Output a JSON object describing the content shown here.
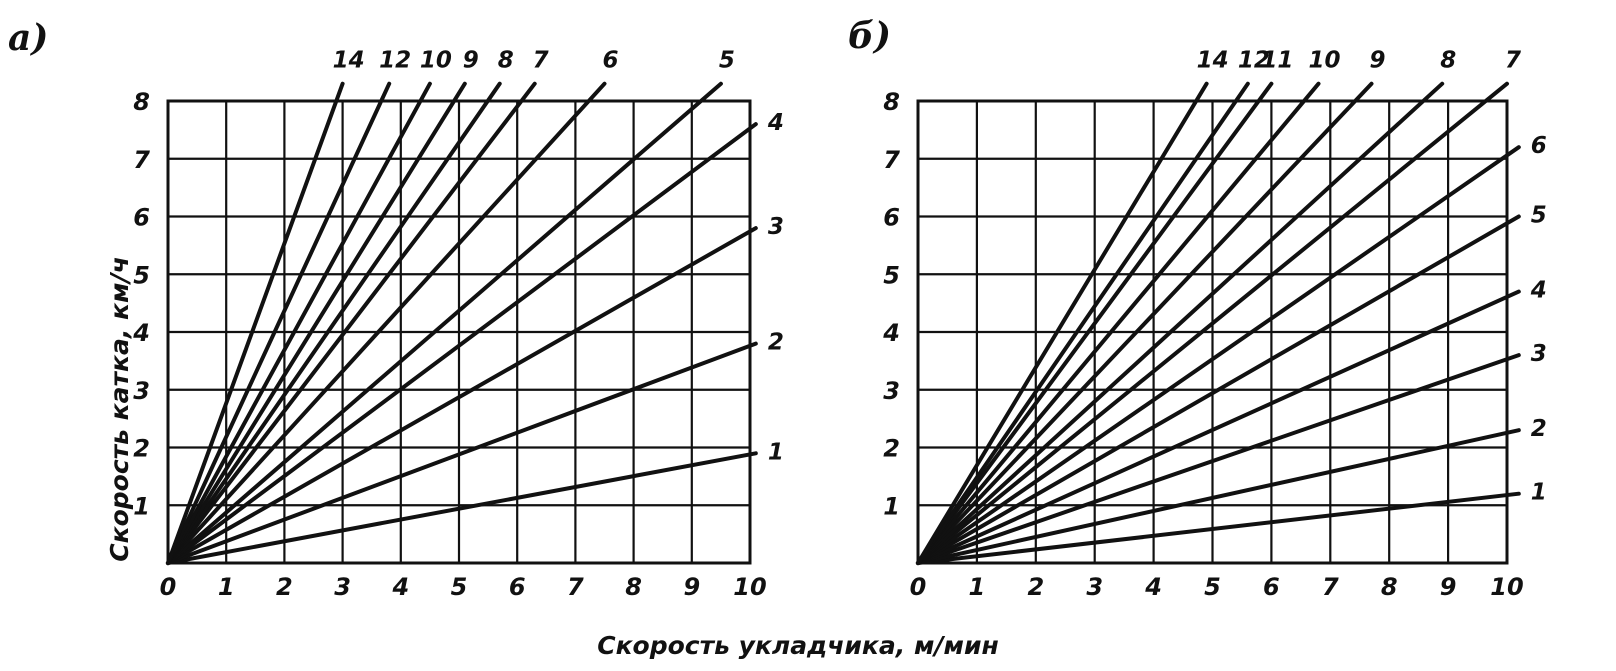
{
  "ylabel": "Скорость катка, км/ч",
  "xlabel": "Скорость укладчика, м/мин",
  "chart_data": [
    {
      "type": "line",
      "panel": "a)",
      "xlim": [
        0,
        10
      ],
      "ylim": [
        0,
        8
      ],
      "x_ticks": [
        "0",
        "1",
        "2",
        "3",
        "4",
        "5",
        "6",
        "7",
        "8",
        "9",
        "10"
      ],
      "y_ticks": [
        "1",
        "2",
        "3",
        "4",
        "5",
        "6",
        "7",
        "8"
      ],
      "grid": true,
      "series": [
        {
          "name": "1",
          "x": [
            0,
            10.1
          ],
          "y": [
            0,
            1.9
          ]
        },
        {
          "name": "2",
          "x": [
            0,
            10.1
          ],
          "y": [
            0,
            3.8
          ]
        },
        {
          "name": "3",
          "x": [
            0,
            10.1
          ],
          "y": [
            0,
            5.8
          ]
        },
        {
          "name": "4",
          "x": [
            0,
            10.1
          ],
          "y": [
            0,
            7.6
          ]
        },
        {
          "name": "5",
          "x": [
            0,
            9.5
          ],
          "y": [
            0,
            8.3
          ]
        },
        {
          "name": "6",
          "x": [
            0,
            7.5
          ],
          "y": [
            0,
            8.3
          ]
        },
        {
          "name": "7",
          "x": [
            0,
            6.3
          ],
          "y": [
            0,
            8.3
          ]
        },
        {
          "name": "8",
          "x": [
            0,
            5.7
          ],
          "y": [
            0,
            8.3
          ]
        },
        {
          "name": "9",
          "x": [
            0,
            5.1
          ],
          "y": [
            0,
            8.3
          ]
        },
        {
          "name": "10",
          "x": [
            0,
            4.5
          ],
          "y": [
            0,
            8.3
          ]
        },
        {
          "name": "12",
          "x": [
            0,
            3.8
          ],
          "y": [
            0,
            8.3
          ]
        },
        {
          "name": "14",
          "x": [
            0,
            3.0
          ],
          "y": [
            0,
            8.3
          ]
        }
      ]
    },
    {
      "type": "line",
      "panel": "б)",
      "xlim": [
        0,
        10
      ],
      "ylim": [
        0,
        8
      ],
      "x_ticks": [
        "0",
        "1",
        "2",
        "3",
        "4",
        "5",
        "6",
        "7",
        "8",
        "9",
        "10"
      ],
      "y_ticks": [
        "1",
        "2",
        "3",
        "4",
        "5",
        "6",
        "7",
        "8"
      ],
      "grid": true,
      "series": [
        {
          "name": "1",
          "x": [
            0,
            10.2
          ],
          "y": [
            0,
            1.2
          ]
        },
        {
          "name": "2",
          "x": [
            0,
            10.2
          ],
          "y": [
            0,
            2.3
          ]
        },
        {
          "name": "3",
          "x": [
            0,
            10.2
          ],
          "y": [
            0,
            3.6
          ]
        },
        {
          "name": "4",
          "x": [
            0,
            10.2
          ],
          "y": [
            0,
            4.7
          ]
        },
        {
          "name": "5",
          "x": [
            0,
            10.2
          ],
          "y": [
            0,
            6.0
          ]
        },
        {
          "name": "6",
          "x": [
            0,
            10.2
          ],
          "y": [
            0,
            7.2
          ]
        },
        {
          "name": "7",
          "x": [
            0,
            10.0
          ],
          "y": [
            0,
            8.3
          ]
        },
        {
          "name": "8",
          "x": [
            0,
            8.9
          ],
          "y": [
            0,
            8.3
          ]
        },
        {
          "name": "9",
          "x": [
            0,
            7.7
          ],
          "y": [
            0,
            8.3
          ]
        },
        {
          "name": "10",
          "x": [
            0,
            6.8
          ],
          "y": [
            0,
            8.3
          ]
        },
        {
          "name": "11",
          "x": [
            0,
            6.0
          ],
          "y": [
            0,
            8.3
          ]
        },
        {
          "name": "12",
          "x": [
            0,
            5.6
          ],
          "y": [
            0,
            8.3
          ]
        },
        {
          "name": "14",
          "x": [
            0,
            4.9
          ],
          "y": [
            0,
            8.3
          ]
        }
      ]
    }
  ]
}
